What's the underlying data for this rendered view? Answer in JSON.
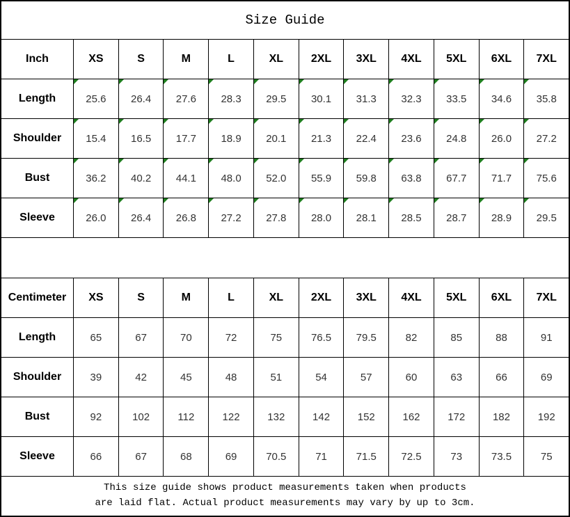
{
  "title": "Size Guide",
  "sizes": [
    "XS",
    "S",
    "M",
    "L",
    "XL",
    "2XL",
    "3XL",
    "4XL",
    "5XL",
    "6XL",
    "7XL"
  ],
  "inch_table": {
    "header_label": "Inch",
    "rows": [
      {
        "label": "Length",
        "values": [
          "25.6",
          "26.4",
          "27.6",
          "28.3",
          "29.5",
          "30.1",
          "31.3",
          "32.3",
          "33.5",
          "34.6",
          "35.8"
        ]
      },
      {
        "label": "Shoulder",
        "values": [
          "15.4",
          "16.5",
          "17.7",
          "18.9",
          "20.1",
          "21.3",
          "22.4",
          "23.6",
          "24.8",
          "26.0",
          "27.2"
        ]
      },
      {
        "label": "Bust",
        "values": [
          "36.2",
          "40.2",
          "44.1",
          "48.0",
          "52.0",
          "55.9",
          "59.8",
          "63.8",
          "67.7",
          "71.7",
          "75.6"
        ]
      },
      {
        "label": "Sleeve",
        "values": [
          "26.0",
          "26.4",
          "26.8",
          "27.2",
          "27.8",
          "28.0",
          "28.1",
          "28.5",
          "28.7",
          "28.9",
          "29.5"
        ]
      }
    ]
  },
  "cm_table": {
    "header_label": "Centimeter",
    "rows": [
      {
        "label": "Length",
        "values": [
          "65",
          "67",
          "70",
          "72",
          "75",
          "76.5",
          "79.5",
          "82",
          "85",
          "88",
          "91"
        ]
      },
      {
        "label": "Shoulder",
        "values": [
          "39",
          "42",
          "45",
          "48",
          "51",
          "54",
          "57",
          "60",
          "63",
          "66",
          "69"
        ]
      },
      {
        "label": "Bust",
        "values": [
          "92",
          "102",
          "112",
          "122",
          "132",
          "142",
          "152",
          "162",
          "172",
          "182",
          "192"
        ]
      },
      {
        "label": "Sleeve",
        "values": [
          "66",
          "67",
          "68",
          "69",
          "70.5",
          "71",
          "71.5",
          "72.5",
          "73",
          "73.5",
          "75"
        ]
      }
    ]
  },
  "footer": {
    "line1": "This size guide shows product measurements taken when products",
    "line2": "are laid flat. Actual product measurements may vary by up to 3cm."
  },
  "colors": {
    "border": "#000000",
    "marker_green": "#1e7e1e",
    "header_text": "#000000",
    "value_text": "#333333"
  },
  "chart_data": [
    {
      "type": "table",
      "title": "Size Guide (Inch)",
      "columns": [
        "Inch",
        "XS",
        "S",
        "M",
        "L",
        "XL",
        "2XL",
        "3XL",
        "4XL",
        "5XL",
        "6XL",
        "7XL"
      ],
      "rows": [
        [
          "Length",
          25.6,
          26.4,
          27.6,
          28.3,
          29.5,
          30.1,
          31.3,
          32.3,
          33.5,
          34.6,
          35.8
        ],
        [
          "Shoulder",
          15.4,
          16.5,
          17.7,
          18.9,
          20.1,
          21.3,
          22.4,
          23.6,
          24.8,
          26.0,
          27.2
        ],
        [
          "Bust",
          36.2,
          40.2,
          44.1,
          48.0,
          52.0,
          55.9,
          59.8,
          63.8,
          67.7,
          71.7,
          75.6
        ],
        [
          "Sleeve",
          26.0,
          26.4,
          26.8,
          27.2,
          27.8,
          28.0,
          28.1,
          28.5,
          28.7,
          28.9,
          29.5
        ]
      ]
    },
    {
      "type": "table",
      "title": "Size Guide (Centimeter)",
      "columns": [
        "Centimeter",
        "XS",
        "S",
        "M",
        "L",
        "XL",
        "2XL",
        "3XL",
        "4XL",
        "5XL",
        "6XL",
        "7XL"
      ],
      "rows": [
        [
          "Length",
          65,
          67,
          70,
          72,
          75,
          76.5,
          79.5,
          82,
          85,
          88,
          91
        ],
        [
          "Shoulder",
          39,
          42,
          45,
          48,
          51,
          54,
          57,
          60,
          63,
          66,
          69
        ],
        [
          "Bust",
          92,
          102,
          112,
          122,
          132,
          142,
          152,
          162,
          172,
          182,
          192
        ],
        [
          "Sleeve",
          66,
          67,
          68,
          69,
          70.5,
          71,
          71.5,
          72.5,
          73,
          73.5,
          75
        ]
      ]
    }
  ]
}
